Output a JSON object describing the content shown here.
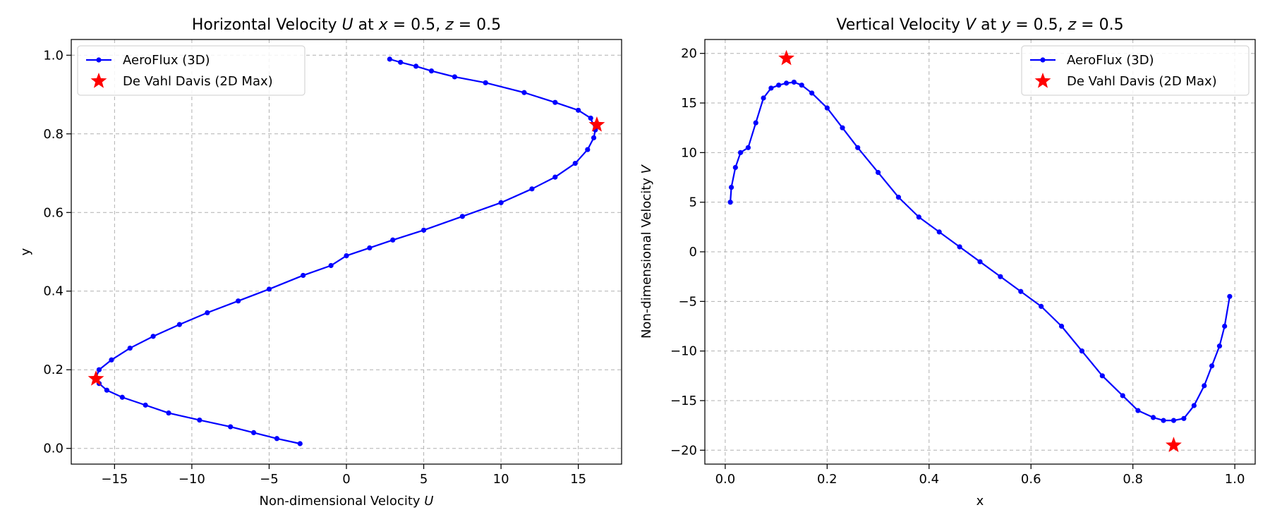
{
  "colors": {
    "series": "#0000ff",
    "reference": "#ff0000",
    "grid": "#b0b0b0"
  },
  "chart_data": [
    {
      "type": "line",
      "title_parts": [
        {
          "t": "Horizontal Velocity "
        },
        {
          "t": "U",
          "i": true
        },
        {
          "t": " at "
        },
        {
          "t": "x",
          "i": true
        },
        {
          "t": " = 0.5, "
        },
        {
          "t": "z",
          "i": true
        },
        {
          "t": " = 0.5"
        }
      ],
      "xlabel_parts": [
        {
          "t": "Non-dimensional Velocity "
        },
        {
          "t": "U",
          "i": true
        }
      ],
      "ylabel_parts": [
        {
          "t": "y"
        }
      ],
      "xlim": [
        -17.8,
        17.8
      ],
      "ylim": [
        -0.04,
        1.04
      ],
      "xticks": [
        -15,
        -10,
        -5,
        0,
        5,
        10,
        15
      ],
      "xtick_labels": [
        "−15",
        "−10",
        "−5",
        "0",
        "5",
        "10",
        "15"
      ],
      "yticks": [
        0.0,
        0.2,
        0.4,
        0.6,
        0.8,
        1.0
      ],
      "ytick_labels": [
        "0.0",
        "0.2",
        "0.4",
        "0.6",
        "0.8",
        "1.0"
      ],
      "grid": true,
      "legend_position": "top-left",
      "series": [
        {
          "name": "AeroFlux (3D)",
          "marker": "dot-line",
          "color": "#0000ff",
          "x": [
            -3.0,
            -4.5,
            -6.0,
            -7.5,
            -9.5,
            -11.5,
            -13.0,
            -14.5,
            -15.5,
            -16.0,
            -16.2,
            -16.0,
            -15.2,
            -14.0,
            -12.5,
            -10.8,
            -9.0,
            -7.0,
            -5.0,
            -2.8,
            -1.0,
            0.0,
            1.5,
            3.0,
            5.0,
            7.5,
            10.0,
            12.0,
            13.5,
            14.8,
            15.6,
            16.0,
            16.1,
            15.8,
            15.0,
            13.5,
            11.5,
            9.0,
            7.0,
            5.5,
            4.5,
            3.5,
            2.8
          ],
          "y": [
            0.012,
            0.025,
            0.04,
            0.055,
            0.072,
            0.09,
            0.11,
            0.13,
            0.148,
            0.165,
            0.18,
            0.2,
            0.225,
            0.255,
            0.285,
            0.315,
            0.345,
            0.375,
            0.405,
            0.44,
            0.465,
            0.49,
            0.51,
            0.53,
            0.555,
            0.59,
            0.625,
            0.66,
            0.69,
            0.725,
            0.76,
            0.79,
            0.81,
            0.84,
            0.86,
            0.88,
            0.905,
            0.93,
            0.945,
            0.96,
            0.972,
            0.982,
            0.99
          ]
        },
        {
          "name": "De Vahl Davis (2D Max)",
          "marker": "star",
          "color": "#ff0000",
          "x": [
            16.2,
            -16.2
          ],
          "y": [
            0.823,
            0.177
          ]
        }
      ]
    },
    {
      "type": "line",
      "title_parts": [
        {
          "t": "Vertical Velocity "
        },
        {
          "t": "V",
          "i": true
        },
        {
          "t": " at "
        },
        {
          "t": "y",
          "i": true
        },
        {
          "t": " = 0.5, "
        },
        {
          "t": "z",
          "i": true
        },
        {
          "t": " = 0.5"
        }
      ],
      "xlabel_parts": [
        {
          "t": "x"
        }
      ],
      "ylabel_parts": [
        {
          "t": "Non-dimensional Velocity "
        },
        {
          "t": "V",
          "i": true
        }
      ],
      "xlim": [
        -0.04,
        1.04
      ],
      "ylim": [
        -21.4,
        21.4
      ],
      "xticks": [
        0.0,
        0.2,
        0.4,
        0.6,
        0.8,
        1.0
      ],
      "xtick_labels": [
        "0.0",
        "0.2",
        "0.4",
        "0.6",
        "0.8",
        "1.0"
      ],
      "yticks": [
        -20,
        -15,
        -10,
        -5,
        0,
        5,
        10,
        15,
        20
      ],
      "ytick_labels": [
        "−20",
        "−15",
        "−10",
        "−5",
        "0",
        "5",
        "10",
        "15",
        "20"
      ],
      "grid": true,
      "legend_position": "top-right",
      "series": [
        {
          "name": "AeroFlux (3D)",
          "marker": "dot-line",
          "color": "#0000ff",
          "x": [
            0.01,
            0.012,
            0.02,
            0.03,
            0.045,
            0.06,
            0.075,
            0.09,
            0.105,
            0.12,
            0.135,
            0.15,
            0.17,
            0.2,
            0.23,
            0.26,
            0.3,
            0.34,
            0.38,
            0.42,
            0.46,
            0.5,
            0.54,
            0.58,
            0.62,
            0.66,
            0.7,
            0.74,
            0.78,
            0.81,
            0.84,
            0.86,
            0.88,
            0.9,
            0.92,
            0.94,
            0.955,
            0.97,
            0.98,
            0.99
          ],
          "y": [
            5.0,
            6.5,
            8.5,
            10.0,
            10.5,
            13.0,
            15.5,
            16.5,
            16.8,
            17.0,
            17.1,
            16.8,
            16.0,
            14.5,
            12.5,
            10.5,
            8.0,
            5.5,
            3.5,
            2.0,
            0.5,
            -1.0,
            -2.5,
            -4.0,
            -5.5,
            -7.5,
            -10.0,
            -12.5,
            -14.5,
            -16.0,
            -16.7,
            -17.0,
            -17.0,
            -16.8,
            -15.5,
            -13.5,
            -11.5,
            -9.5,
            -7.5,
            -4.5
          ]
        },
        {
          "name": "De Vahl Davis (2D Max)",
          "marker": "star",
          "color": "#ff0000",
          "x": [
            0.12,
            0.88
          ],
          "y": [
            19.5,
            -19.5
          ]
        }
      ]
    }
  ]
}
